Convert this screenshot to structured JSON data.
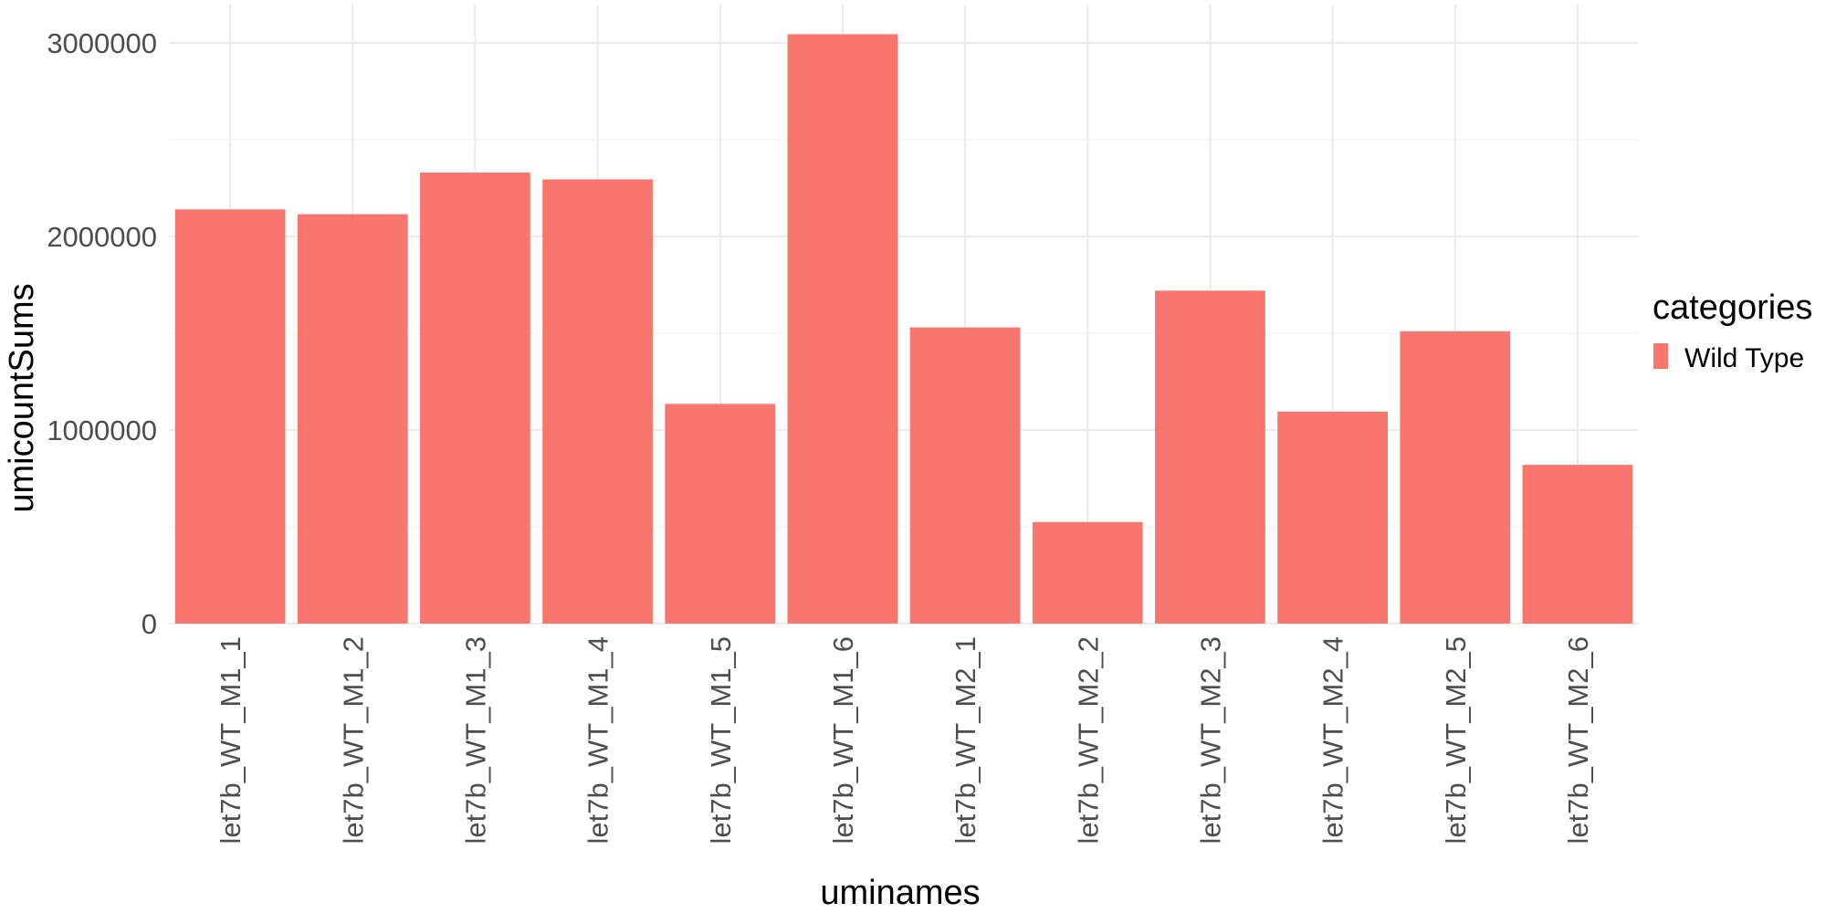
{
  "chart_data": {
    "type": "bar",
    "title": "",
    "xlabel": "uminames",
    "ylabel": "umicountSums",
    "categories": [
      "let7b_WT_M1_1",
      "let7b_WT_M1_2",
      "let7b_WT_M1_3",
      "let7b_WT_M1_4",
      "let7b_WT_M1_5",
      "let7b_WT_M1_6",
      "let7b_WT_M2_1",
      "let7b_WT_M2_2",
      "let7b_WT_M2_3",
      "let7b_WT_M2_4",
      "let7b_WT_M2_5",
      "let7b_WT_M2_6"
    ],
    "series": [
      {
        "name": "Wild Type",
        "color": "#F8766D",
        "values": [
          2140000,
          2115000,
          2330000,
          2295000,
          1135000,
          3045000,
          1530000,
          525000,
          1720000,
          1095000,
          1510000,
          820000
        ]
      }
    ],
    "ylim": [
      0,
      3000000
    ],
    "yticks": [
      0,
      1000000,
      2000000,
      3000000
    ],
    "ytick_labels": [
      "0",
      "1000000",
      "2000000",
      "3000000"
    ],
    "grid": true,
    "legend": {
      "title": "categories",
      "placement": "right"
    }
  }
}
